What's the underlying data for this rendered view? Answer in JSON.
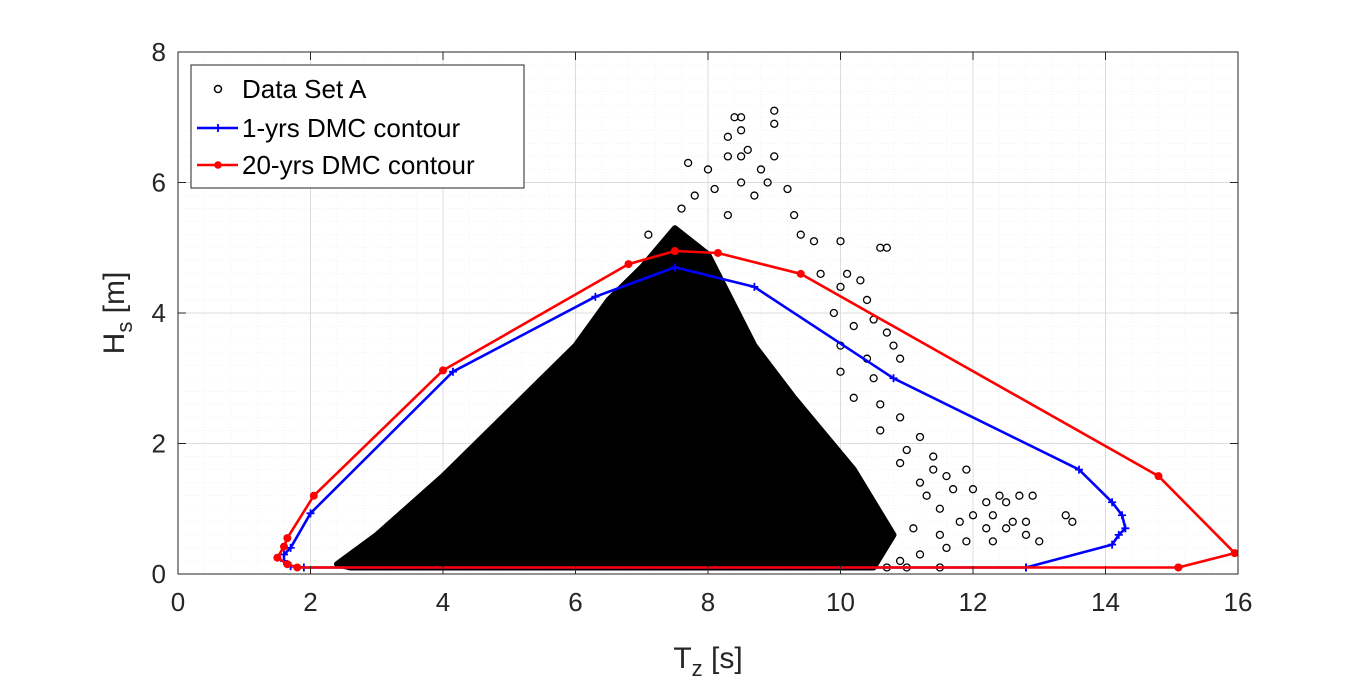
{
  "chart_data": {
    "type": "scatter",
    "xlabel": {
      "main": "T",
      "sub": "z",
      "unit": " [s]"
    },
    "ylabel": {
      "main": "H",
      "sub": "s",
      "unit": " [m]"
    },
    "xlim": [
      0,
      16
    ],
    "ylim": [
      0,
      8
    ],
    "xticks": [
      "0",
      "2",
      "4",
      "6",
      "8",
      "10",
      "12",
      "14",
      "16"
    ],
    "yticks": [
      "0",
      "2",
      "4",
      "6",
      "8"
    ],
    "grid": true,
    "minor_grid": true,
    "legend_position": "top-left",
    "series": [
      {
        "name": "Data Set A",
        "kind": "scatter",
        "marker": "open-circle",
        "color": "#000000",
        "region_boundary": [
          [
            2.4,
            0.15
          ],
          [
            3.0,
            0.6
          ],
          [
            4.0,
            1.5
          ],
          [
            5.0,
            2.5
          ],
          [
            6.0,
            3.5
          ],
          [
            6.5,
            4.2
          ],
          [
            7.0,
            4.7
          ],
          [
            7.5,
            5.3
          ],
          [
            8.0,
            4.9
          ],
          [
            8.7,
            3.5
          ],
          [
            9.3,
            2.7
          ],
          [
            10.2,
            1.6
          ],
          [
            10.8,
            0.6
          ],
          [
            10.5,
            0.1
          ],
          [
            2.6,
            0.1
          ]
        ],
        "outliers": [
          [
            8.4,
            7.0
          ],
          [
            8.5,
            7.0
          ],
          [
            9.0,
            7.1
          ],
          [
            9.0,
            6.9
          ],
          [
            8.5,
            6.8
          ],
          [
            8.3,
            6.7
          ],
          [
            8.6,
            6.5
          ],
          [
            9.0,
            6.4
          ],
          [
            8.3,
            6.4
          ],
          [
            8.5,
            6.4
          ],
          [
            8.8,
            6.2
          ],
          [
            8.0,
            6.2
          ],
          [
            7.7,
            6.3
          ],
          [
            8.9,
            6.0
          ],
          [
            8.5,
            6.0
          ],
          [
            8.1,
            5.9
          ],
          [
            7.8,
            5.8
          ],
          [
            8.7,
            5.8
          ],
          [
            9.2,
            5.9
          ],
          [
            7.6,
            5.6
          ],
          [
            8.3,
            5.5
          ],
          [
            9.3,
            5.5
          ],
          [
            9.4,
            5.2
          ],
          [
            9.6,
            5.1
          ],
          [
            10.0,
            5.1
          ],
          [
            10.6,
            5.0
          ],
          [
            10.7,
            5.0
          ],
          [
            7.1,
            5.2
          ],
          [
            9.7,
            4.6
          ],
          [
            10.1,
            4.6
          ],
          [
            10.3,
            4.5
          ],
          [
            10.0,
            4.4
          ],
          [
            10.4,
            4.2
          ],
          [
            9.9,
            4.0
          ],
          [
            10.5,
            3.9
          ],
          [
            10.2,
            3.8
          ],
          [
            10.7,
            3.7
          ],
          [
            10.0,
            3.5
          ],
          [
            10.8,
            3.5
          ],
          [
            10.4,
            3.3
          ],
          [
            10.9,
            3.3
          ],
          [
            10.0,
            3.1
          ],
          [
            10.5,
            3.0
          ],
          [
            10.2,
            2.7
          ],
          [
            10.6,
            2.6
          ],
          [
            10.9,
            2.4
          ],
          [
            10.6,
            2.2
          ],
          [
            11.2,
            2.1
          ],
          [
            11.0,
            1.9
          ],
          [
            11.4,
            1.8
          ],
          [
            10.9,
            1.7
          ],
          [
            11.4,
            1.6
          ],
          [
            11.9,
            1.6
          ],
          [
            11.6,
            1.5
          ],
          [
            11.2,
            1.4
          ],
          [
            11.7,
            1.3
          ],
          [
            12.0,
            1.3
          ],
          [
            12.4,
            1.2
          ],
          [
            12.7,
            1.2
          ],
          [
            12.9,
            1.2
          ],
          [
            11.3,
            1.2
          ],
          [
            12.2,
            1.1
          ],
          [
            12.5,
            1.1
          ],
          [
            11.5,
            1.0
          ],
          [
            12.0,
            0.9
          ],
          [
            12.3,
            0.9
          ],
          [
            11.8,
            0.8
          ],
          [
            12.6,
            0.8
          ],
          [
            12.8,
            0.8
          ],
          [
            13.4,
            0.9
          ],
          [
            13.5,
            0.8
          ],
          [
            12.2,
            0.7
          ],
          [
            12.5,
            0.7
          ],
          [
            11.1,
            0.7
          ],
          [
            12.8,
            0.6
          ],
          [
            13.0,
            0.5
          ],
          [
            12.3,
            0.5
          ],
          [
            11.5,
            0.6
          ],
          [
            11.9,
            0.5
          ],
          [
            11.6,
            0.4
          ],
          [
            11.2,
            0.3
          ],
          [
            10.9,
            0.2
          ],
          [
            11.5,
            0.1
          ],
          [
            10.7,
            0.1
          ],
          [
            11.0,
            0.1
          ]
        ]
      },
      {
        "name": "1-yrs DMC contour",
        "kind": "line",
        "marker": "plus",
        "color": "#0000ff",
        "x": [
          12.8,
          14.1,
          14.2,
          14.3,
          14.25,
          14.1,
          13.6,
          10.8,
          8.7,
          7.5,
          6.3,
          4.15,
          2.0,
          1.7,
          1.6,
          1.6,
          1.7,
          1.9,
          12.8
        ],
        "y": [
          0.1,
          0.45,
          0.6,
          0.7,
          0.9,
          1.1,
          1.6,
          3.0,
          4.4,
          4.7,
          4.25,
          3.1,
          0.93,
          0.4,
          0.3,
          0.2,
          0.12,
          0.1,
          0.1
        ]
      },
      {
        "name": "20-yrs DMC contour",
        "kind": "line",
        "marker": "dot",
        "color": "#ff0000",
        "x": [
          15.1,
          15.95,
          14.8,
          9.4,
          8.15,
          7.5,
          6.8,
          4.0,
          2.05,
          1.65,
          1.6,
          1.5,
          1.65,
          1.8,
          15.1
        ],
        "y": [
          0.1,
          0.32,
          1.5,
          4.6,
          4.92,
          4.95,
          4.75,
          3.12,
          1.2,
          0.55,
          0.42,
          0.25,
          0.15,
          0.1,
          0.1
        ]
      }
    ]
  },
  "colors": {
    "grid": "#dcdcdc",
    "axis": "#262626",
    "series_1": "#0000ff",
    "series_2": "#ff0000"
  }
}
